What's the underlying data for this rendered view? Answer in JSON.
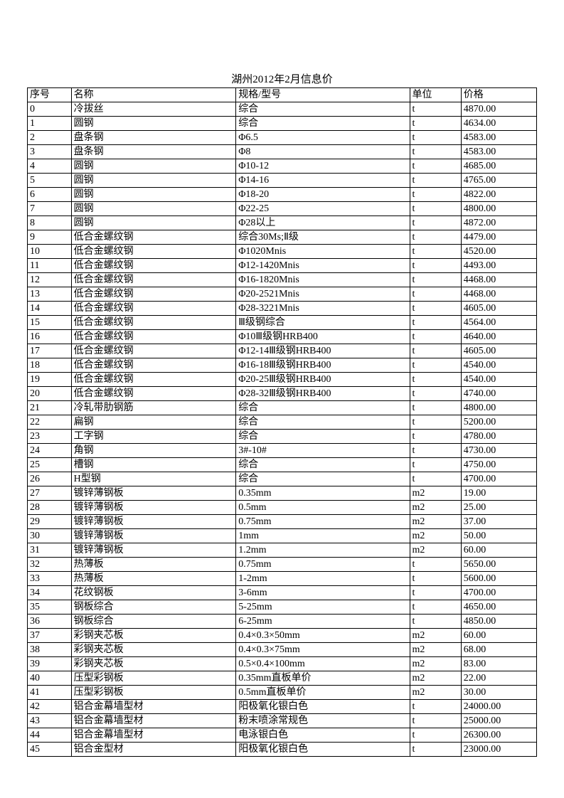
{
  "title": "湖州2012年2月信息价",
  "headers": {
    "seq": "序号",
    "name": "名称",
    "spec": "规格/型号",
    "unit": "单位",
    "price": "价格"
  },
  "rows": [
    {
      "seq": "0",
      "name": "冷拔丝",
      "spec": "综合",
      "unit": "t",
      "price": "4870.00"
    },
    {
      "seq": "1",
      "name": "圆钢",
      "spec": "综合",
      "unit": "t",
      "price": "4634.00"
    },
    {
      "seq": "2",
      "name": "盘条钢",
      "spec": "Φ6.5",
      "unit": "t",
      "price": "4583.00"
    },
    {
      "seq": "3",
      "name": "盘条钢",
      "spec": "Φ8",
      "unit": "t",
      "price": "4583.00"
    },
    {
      "seq": "4",
      "name": "圆钢",
      "spec": "Φ10-12",
      "unit": "t",
      "price": "4685.00"
    },
    {
      "seq": "5",
      "name": "圆钢",
      "spec": "Φ14-16",
      "unit": "t",
      "price": "4765.00"
    },
    {
      "seq": "6",
      "name": "圆钢",
      "spec": "Φ18-20",
      "unit": "t",
      "price": "4822.00"
    },
    {
      "seq": "7",
      "name": "圆钢",
      "spec": "Φ22-25",
      "unit": "t",
      "price": "4800.00"
    },
    {
      "seq": "8",
      "name": "圆钢",
      "spec": "Φ28以上",
      "unit": "t",
      "price": "4872.00"
    },
    {
      "seq": "9",
      "name": "低合金螺纹钢",
      "spec": "综合30Ms;Ⅱ级",
      "unit": "t",
      "price": "4479.00"
    },
    {
      "seq": "10",
      "name": "低合金螺纹钢",
      "spec": "Φ1020Mnis",
      "unit": "t",
      "price": "4520.00"
    },
    {
      "seq": "11",
      "name": "低合金螺纹钢",
      "spec": "Φ12-1420Mnis",
      "unit": "t",
      "price": "4493.00"
    },
    {
      "seq": "12",
      "name": "低合金螺纹钢",
      "spec": "Φ16-1820Mnis",
      "unit": "t",
      "price": "4468.00"
    },
    {
      "seq": "13",
      "name": "低合金螺纹钢",
      "spec": "Φ20-2521Mnis",
      "unit": "t",
      "price": "4468.00"
    },
    {
      "seq": "14",
      "name": "低合金螺纹钢",
      "spec": "Φ28-3221Mnis",
      "unit": "t",
      "price": "4605.00"
    },
    {
      "seq": "15",
      "name": "低合金螺纹钢",
      "spec": "Ⅲ级钢综合",
      "unit": "t",
      "price": "4564.00"
    },
    {
      "seq": "16",
      "name": "低合金螺纹钢",
      "spec": "Φ10Ⅲ级钢HRB400",
      "unit": "t",
      "price": "4640.00"
    },
    {
      "seq": "17",
      "name": "低合金螺纹钢",
      "spec": "Φ12-14Ⅲ级钢HRB400",
      "unit": "t",
      "price": "4605.00"
    },
    {
      "seq": "18",
      "name": "低合金螺纹钢",
      "spec": "Φ16-18Ⅲ级钢HRB400",
      "unit": "t",
      "price": "4540.00"
    },
    {
      "seq": "19",
      "name": "低合金螺纹钢",
      "spec": "Φ20-25Ⅲ级钢HRB400",
      "unit": "t",
      "price": "4540.00"
    },
    {
      "seq": "20",
      "name": "低合金螺纹钢",
      "spec": "Φ28-32Ⅲ级钢HRB400",
      "unit": "t",
      "price": "4740.00"
    },
    {
      "seq": "21",
      "name": "冷轧带肋钢筋",
      "spec": "综合",
      "unit": "t",
      "price": "4800.00"
    },
    {
      "seq": "22",
      "name": "扁钢",
      "spec": "综合",
      "unit": "t",
      "price": "5200.00"
    },
    {
      "seq": "23",
      "name": "工字钢",
      "spec": "综合",
      "unit": "t",
      "price": "4780.00"
    },
    {
      "seq": "24",
      "name": "角钢",
      "spec": "3#-10#",
      "unit": "t",
      "price": "4730.00"
    },
    {
      "seq": "25",
      "name": "槽钢",
      "spec": "综合",
      "unit": "t",
      "price": "4750.00"
    },
    {
      "seq": "26",
      "name": "H型钢",
      "spec": "综合",
      "unit": "t",
      "price": "4700.00"
    },
    {
      "seq": "27",
      "name": "镀锌薄钢板",
      "spec": "0.35mm",
      "unit": "m2",
      "price": "19.00"
    },
    {
      "seq": "28",
      "name": "镀锌薄钢板",
      "spec": "0.5mm",
      "unit": "m2",
      "price": "25.00"
    },
    {
      "seq": "29",
      "name": "镀锌薄钢板",
      "spec": "0.75mm",
      "unit": "m2",
      "price": "37.00"
    },
    {
      "seq": "30",
      "name": "镀锌薄钢板",
      "spec": "1mm",
      "unit": "m2",
      "price": "50.00"
    },
    {
      "seq": "31",
      "name": "镀锌薄钢板",
      "spec": "1.2mm",
      "unit": "m2",
      "price": "60.00"
    },
    {
      "seq": "32",
      "name": "热薄板",
      "spec": "0.75mm",
      "unit": "t",
      "price": "5650.00"
    },
    {
      "seq": "33",
      "name": "热薄板",
      "spec": "1-2mm",
      "unit": "t",
      "price": "5600.00"
    },
    {
      "seq": "34",
      "name": "花纹钢板",
      "spec": "3-6mm",
      "unit": "t",
      "price": "4700.00"
    },
    {
      "seq": "35",
      "name": "钢板综合",
      "spec": "5-25mm",
      "unit": "t",
      "price": "4650.00"
    },
    {
      "seq": "36",
      "name": "钢板综合",
      "spec": "6-25mm",
      "unit": "t",
      "price": "4850.00"
    },
    {
      "seq": "37",
      "name": "彩钢夹芯板",
      "spec": "0.4×0.3×50mm",
      "unit": "m2",
      "price": "60.00"
    },
    {
      "seq": "38",
      "name": "彩钢夹芯板",
      "spec": "0.4×0.3×75mm",
      "unit": "m2",
      "price": "68.00"
    },
    {
      "seq": "39",
      "name": "彩钢夹芯板",
      "spec": "0.5×0.4×100mm",
      "unit": "m2",
      "price": "83.00"
    },
    {
      "seq": "40",
      "name": "压型彩钢板",
      "spec": "0.35mm直板单价",
      "unit": "m2",
      "price": "22.00"
    },
    {
      "seq": "41",
      "name": "压型彩钢板",
      "spec": "0.5mm直板单价",
      "unit": "m2",
      "price": "30.00"
    },
    {
      "seq": "42",
      "name": "铝合金幕墙型材",
      "spec": "阳极氧化银白色",
      "unit": "t",
      "price": "24000.00"
    },
    {
      "seq": "43",
      "name": "铝合金幕墙型材",
      "spec": "粉末喷涂常规色",
      "unit": "t",
      "price": "25000.00"
    },
    {
      "seq": "44",
      "name": "铝合金幕墙型材",
      "spec": "电泳银白色",
      "unit": "t",
      "price": "26300.00"
    },
    {
      "seq": "45",
      "name": "铝合金型材",
      "spec": "阳极氧化银白色",
      "unit": "t",
      "price": "23000.00"
    }
  ]
}
